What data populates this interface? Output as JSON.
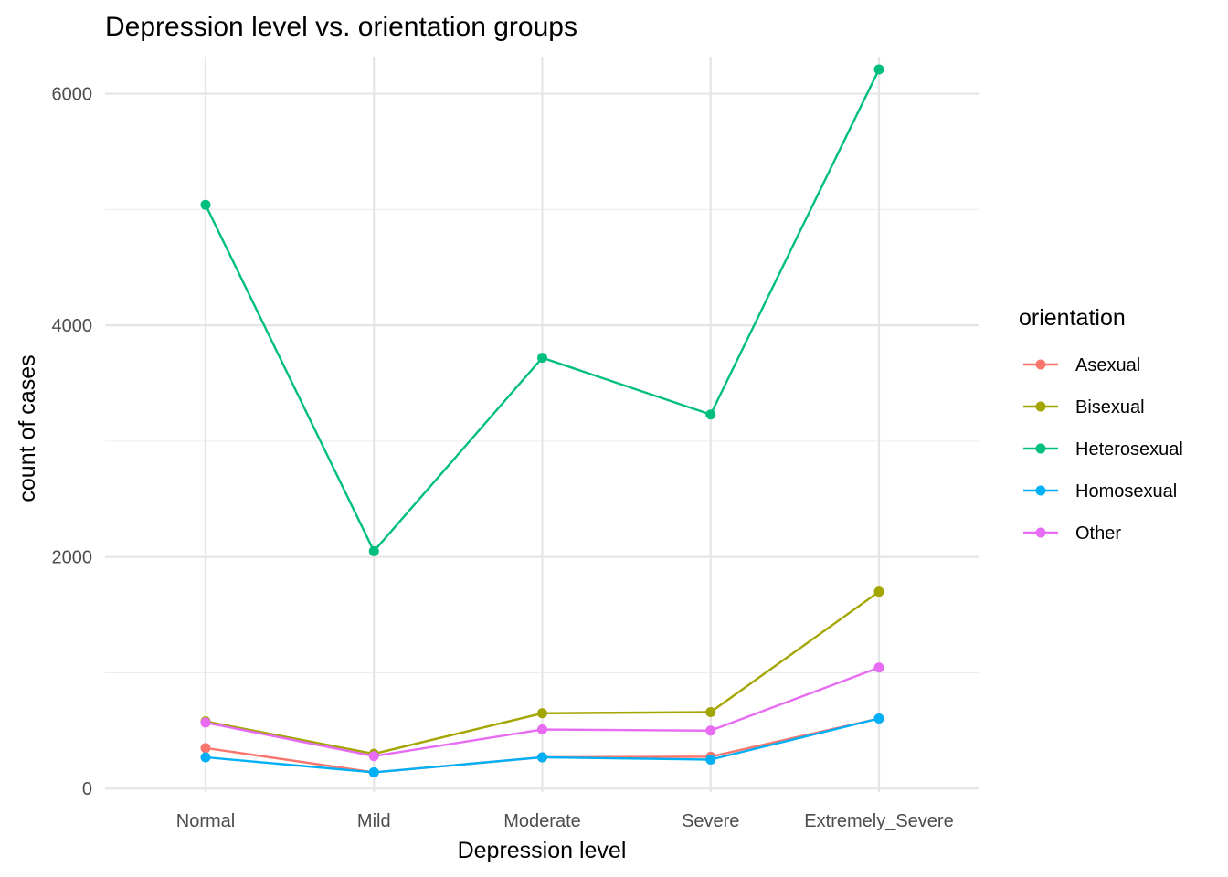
{
  "chart_data": {
    "type": "line",
    "title": "Depression level vs. orientation groups",
    "xlabel": "Depression level",
    "ylabel": "count of cases",
    "categories": [
      "Normal",
      "Mild",
      "Moderate",
      "Severe",
      "Extremely_Severe"
    ],
    "ylim": [
      -30,
      6320
    ],
    "yticks": [
      0,
      2000,
      4000,
      6000
    ],
    "yticks_labels": [
      "0",
      "2000",
      "4000",
      "6000"
    ],
    "y_minor_ticks": [
      1000,
      3000,
      5000
    ],
    "grid": true,
    "legend": {
      "title": "orientation",
      "placement": "right"
    },
    "series": [
      {
        "name": "Asexual",
        "color": "#F8766D",
        "values": [
          350,
          140,
          270,
          275,
          605
        ]
      },
      {
        "name": "Bisexual",
        "color": "#A3A500",
        "values": [
          580,
          300,
          650,
          660,
          1700
        ]
      },
      {
        "name": "Heterosexual",
        "color": "#00BF7D",
        "values": [
          5040,
          2050,
          3720,
          3230,
          6210
        ]
      },
      {
        "name": "Homosexual",
        "color": "#00B0F6",
        "values": [
          270,
          140,
          270,
          250,
          605
        ]
      },
      {
        "name": "Other",
        "color": "#E76BF3",
        "values": [
          570,
          280,
          510,
          500,
          1045
        ]
      }
    ]
  }
}
